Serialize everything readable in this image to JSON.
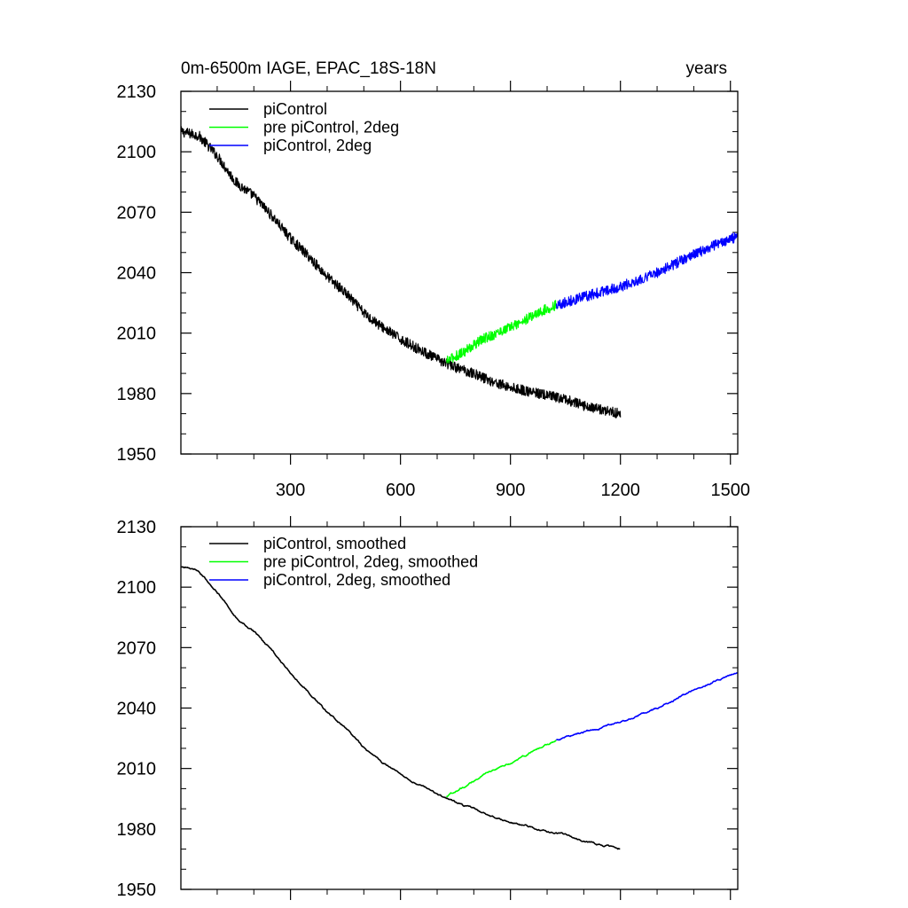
{
  "chart_data": [
    {
      "type": "line",
      "title": "0m-6500m IAGE, EPAC_18S-18N",
      "units": "years",
      "xlabel": "",
      "ylabel": "",
      "xlim": [
        1,
        1520
      ],
      "ylim": [
        1950,
        2130
      ],
      "xticks": [
        300,
        600,
        900,
        1200,
        1500
      ],
      "xtick_labels": [
        "300",
        "600",
        "900",
        "1200",
        "1500"
      ],
      "yticks": [
        1950,
        1980,
        2010,
        2040,
        2070,
        2100,
        2130
      ],
      "ytick_labels": [
        "1950",
        "1980",
        "2010",
        "2040",
        "2070",
        "2100",
        "2130"
      ],
      "legend_position": "top-left",
      "series": [
        {
          "name": "piControl",
          "color": "#000000",
          "noise": 1.6,
          "points": [
            [
              1,
              2110
            ],
            [
              50,
              2108
            ],
            [
              100,
              2098
            ],
            [
              150,
              2085
            ],
            [
              200,
              2078
            ],
            [
              250,
              2068
            ],
            [
              300,
              2057
            ],
            [
              350,
              2048
            ],
            [
              400,
              2038
            ],
            [
              450,
              2030
            ],
            [
              500,
              2020
            ],
            [
              550,
              2013
            ],
            [
              600,
              2007
            ],
            [
              650,
              2002
            ],
            [
              700,
              1997
            ],
            [
              750,
              1993
            ],
            [
              800,
              1990
            ],
            [
              850,
              1986
            ],
            [
              900,
              1983
            ],
            [
              950,
              1981
            ],
            [
              1000,
              1979
            ],
            [
              1050,
              1977
            ],
            [
              1100,
              1974
            ],
            [
              1150,
              1972
            ],
            [
              1200,
              1970
            ]
          ]
        },
        {
          "name": "pre piControl, 2deg",
          "color": "#00ff00",
          "noise": 1.6,
          "points": [
            [
              725,
              1996
            ],
            [
              775,
              2001
            ],
            [
              825,
              2007
            ],
            [
              875,
              2011
            ],
            [
              925,
              2015
            ],
            [
              975,
              2020
            ],
            [
              1025,
              2024
            ]
          ]
        },
        {
          "name": "piControl, 2deg",
          "color": "#0000ff",
          "noise": 1.6,
          "points": [
            [
              1025,
              2024
            ],
            [
              1100,
              2028
            ],
            [
              1200,
              2033
            ],
            [
              1300,
              2040
            ],
            [
              1400,
              2049
            ],
            [
              1450,
              2053
            ],
            [
              1520,
              2058
            ]
          ]
        }
      ]
    },
    {
      "type": "line",
      "title": "",
      "units": "",
      "xlabel": "",
      "ylabel": "",
      "xlim": [
        1,
        1520
      ],
      "ylim": [
        1950,
        2130
      ],
      "xticks": [
        300,
        600,
        900,
        1200,
        1500
      ],
      "xtick_labels": [],
      "yticks": [
        1950,
        1980,
        2010,
        2040,
        2070,
        2100,
        2130
      ],
      "ytick_labels": [
        "1950",
        "1980",
        "2010",
        "2040",
        "2070",
        "2100",
        "2130"
      ],
      "legend_position": "top-left",
      "series": [
        {
          "name": "piControl, smoothed",
          "color": "#000000",
          "noise": 0.4,
          "points": [
            [
              1,
              2110
            ],
            [
              50,
              2108
            ],
            [
              100,
              2098
            ],
            [
              150,
              2085
            ],
            [
              200,
              2078
            ],
            [
              250,
              2068
            ],
            [
              300,
              2057
            ],
            [
              350,
              2048
            ],
            [
              400,
              2038
            ],
            [
              450,
              2030
            ],
            [
              500,
              2020
            ],
            [
              550,
              2013
            ],
            [
              600,
              2007
            ],
            [
              650,
              2002
            ],
            [
              700,
              1997
            ],
            [
              750,
              1993
            ],
            [
              800,
              1990
            ],
            [
              850,
              1986
            ],
            [
              900,
              1983
            ],
            [
              950,
              1981
            ],
            [
              1000,
              1979
            ],
            [
              1050,
              1977
            ],
            [
              1100,
              1974
            ],
            [
              1150,
              1972
            ],
            [
              1200,
              1970
            ]
          ]
        },
        {
          "name": "pre piControl, 2deg, smoothed",
          "color": "#00ff00",
          "noise": 0.4,
          "points": [
            [
              725,
              1996
            ],
            [
              775,
              2001
            ],
            [
              825,
              2007
            ],
            [
              875,
              2011
            ],
            [
              925,
              2015
            ],
            [
              975,
              2020
            ],
            [
              1025,
              2024
            ]
          ]
        },
        {
          "name": "piControl, 2deg, smoothed",
          "color": "#0000ff",
          "noise": 0.4,
          "points": [
            [
              1025,
              2024
            ],
            [
              1100,
              2028
            ],
            [
              1200,
              2033
            ],
            [
              1300,
              2040
            ],
            [
              1400,
              2049
            ],
            [
              1450,
              2053
            ],
            [
              1520,
              2058
            ]
          ]
        }
      ]
    }
  ]
}
